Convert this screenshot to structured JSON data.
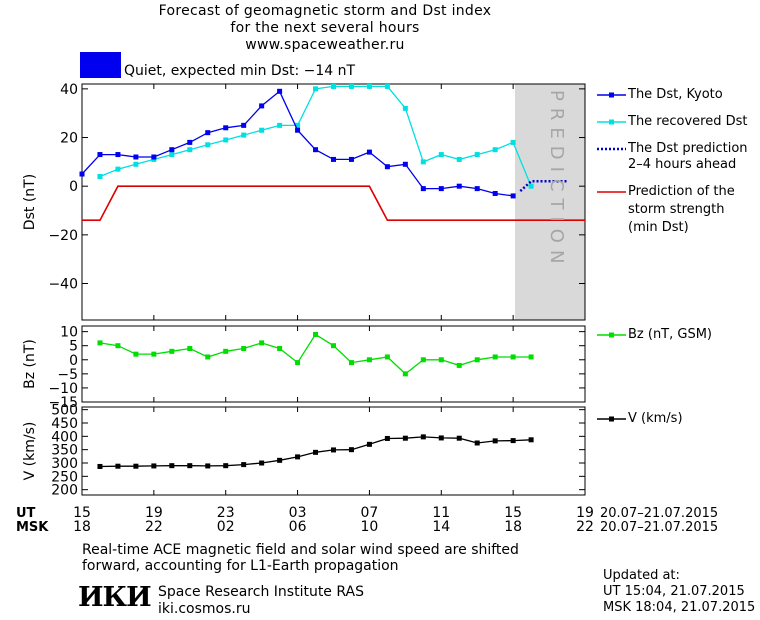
{
  "header": {
    "title_line1": "Forecast of geomagnetic storm and Dst index",
    "title_line2": "for the next several hours",
    "url": "www.spaceweather.ru",
    "status": "Quiet, expected min Dst: −14 nT",
    "status_color": "#0000ee"
  },
  "colors": {
    "dst_kyoto": "#0000ee",
    "recovered_dst": "#00e0e0",
    "prediction": "#0000cc",
    "storm_strength": "#dd0000",
    "bz": "#00dd00",
    "v": "#000000",
    "prediction_band": "#d9d9d9"
  },
  "legend": {
    "dst_kyoto": "The Dst, Kyoto",
    "recovered_dst": "The recovered Dst",
    "dst_prediction_line1": "The Dst prediction",
    "dst_prediction_line2": "2–4 hours ahead",
    "storm_line1": "Prediction of the",
    "storm_line2": "storm strength",
    "storm_line3": "(min Dst)",
    "bz": "Bz (nT, GSM)",
    "v": "V (km/s)"
  },
  "prediction_label": "PREDICTION",
  "time_axis": {
    "ut_label": "UT",
    "msk_label": "MSK",
    "ut_ticks": [
      "15",
      "19",
      "23",
      "03",
      "07",
      "11",
      "15",
      "19"
    ],
    "msk_ticks": [
      "18",
      "22",
      "02",
      "06",
      "10",
      "14",
      "18",
      "22"
    ],
    "date_range_ut": "20.07–21.07.2015",
    "date_range_msk": "20.07–21.07.2015"
  },
  "footer": {
    "note_line1": "Real-time ACE magnetic field and solar wind speed are shifted",
    "note_line2": "forward, accounting for L1-Earth propagation",
    "logo_text": "ИКИ",
    "institute": "Space Research Institute RAS",
    "site": "iki.cosmos.ru",
    "updated_label": "Updated at:",
    "updated_ut": "UT  15:04, 21.07.2015",
    "updated_msk": "MSK 18:04, 21.07.2015"
  },
  "chart_data": [
    {
      "type": "line",
      "ylabel": "Dst (nT)",
      "xlim": [
        0,
        28
      ],
      "ylim": [
        -55,
        42
      ],
      "yticks": [
        40,
        20,
        0,
        -20,
        -40
      ],
      "prediction_band": [
        24,
        28
      ],
      "series": [
        {
          "name": "The Dst, Kyoto",
          "x": [
            0,
            1,
            2,
            3,
            4,
            5,
            6,
            7,
            8,
            9,
            10,
            11,
            12,
            13,
            14,
            15,
            16,
            17,
            18,
            19,
            20,
            21,
            22,
            23,
            24
          ],
          "y": [
            5,
            13,
            13,
            12,
            12,
            15,
            18,
            22,
            24,
            25,
            33,
            39,
            23,
            15,
            11,
            11,
            14,
            8,
            9,
            -1,
            -1,
            0,
            -1,
            -3,
            -4
          ]
        },
        {
          "name": "The recovered Dst",
          "x": [
            1,
            2,
            3,
            4,
            5,
            6,
            7,
            8,
            9,
            10,
            11,
            12,
            13,
            14,
            15,
            16,
            17,
            18,
            19,
            20,
            21,
            22,
            23,
            24,
            25
          ],
          "y": [
            4,
            7,
            9,
            11,
            13,
            15,
            17,
            19,
            21,
            23,
            25,
            25,
            40,
            41,
            41,
            41,
            41,
            32,
            10,
            13,
            11,
            13,
            15,
            18,
            0
          ]
        },
        {
          "name": "The Dst prediction 2–4 hours ahead",
          "x": [
            24.4,
            25,
            26,
            27
          ],
          "y": [
            -2,
            2,
            2,
            2
          ]
        },
        {
          "name": "Prediction of the storm strength (min Dst)",
          "x": [
            0,
            1,
            2,
            16,
            17,
            28
          ],
          "y": [
            -14,
            -14,
            0,
            0,
            -14,
            -14
          ]
        }
      ]
    },
    {
      "type": "line",
      "ylabel": "Bz (nT)",
      "xlim": [
        0,
        28
      ],
      "ylim": [
        -15,
        12
      ],
      "yticks": [
        10,
        5,
        0,
        -5,
        -10,
        -15
      ],
      "series": [
        {
          "name": "Bz (nT, GSM)",
          "x": [
            1,
            2,
            3,
            4,
            5,
            6,
            7,
            8,
            9,
            10,
            11,
            12,
            13,
            14,
            15,
            16,
            17,
            18,
            19,
            20,
            21,
            22,
            23,
            24,
            25
          ],
          "y": [
            6,
            5,
            2,
            2,
            3,
            4,
            1,
            3,
            4,
            6,
            4,
            -1,
            9,
            5,
            -1,
            0,
            1,
            -5,
            0,
            0,
            -2,
            0,
            1,
            1,
            1
          ]
        }
      ]
    },
    {
      "type": "line",
      "ylabel": "V (km/s)",
      "xlim": [
        0,
        28
      ],
      "ylim": [
        180,
        510
      ],
      "yticks": [
        500,
        450,
        400,
        350,
        300,
        250,
        200
      ],
      "series": [
        {
          "name": "V (km/s)",
          "x": [
            1,
            2,
            3,
            4,
            5,
            6,
            7,
            8,
            9,
            10,
            11,
            12,
            13,
            14,
            15,
            16,
            17,
            18,
            19,
            20,
            21,
            22,
            23,
            24,
            25
          ],
          "y": [
            287,
            288,
            288,
            289,
            290,
            290,
            289,
            290,
            294,
            300,
            310,
            323,
            340,
            349,
            350,
            370,
            392,
            393,
            398,
            394,
            393,
            375,
            383,
            384,
            387
          ]
        }
      ]
    }
  ]
}
